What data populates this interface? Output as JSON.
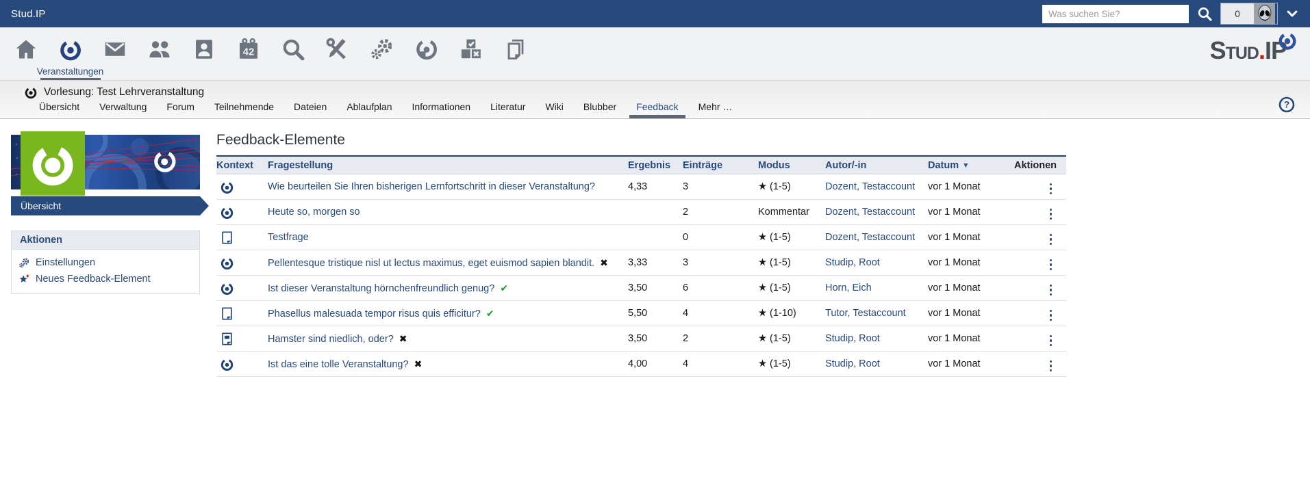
{
  "colors": {
    "brand": "#28497c",
    "table_header_bg": "#e7ebf1",
    "green_square": "#7ab61e",
    "check_green": "#169e1f",
    "cross_black": "#101214",
    "plus_red": "#cc1111",
    "logo_red": "#c3220f"
  },
  "icons_used": [
    "home-icon",
    "seminar-swoosh-icon",
    "mail-icon",
    "community-icon",
    "profile-icon",
    "calendar-icon",
    "search-icon",
    "tools-icon",
    "admin-gears-icon",
    "evaluation-icon",
    "vote-icon",
    "pages-icon",
    "help-icon",
    "chevron-down-icon",
    "alien-avatar",
    "file-icon",
    "file-office-icon",
    "star-plus-icon",
    "sort-desc-icon",
    "kebab-menu-icon"
  ],
  "topbar": {
    "title": "Stud.IP",
    "search_placeholder": "Was suchen Sie?",
    "notification_count": "0"
  },
  "iconbar": {
    "calendar_day": "42",
    "items": [
      {
        "name": "home"
      },
      {
        "name": "seminar",
        "label": "Veranstaltungen",
        "active": true
      },
      {
        "name": "mail"
      },
      {
        "name": "community"
      },
      {
        "name": "profile"
      },
      {
        "name": "calendar"
      },
      {
        "name": "search"
      },
      {
        "name": "tools"
      },
      {
        "name": "admin"
      },
      {
        "name": "evaluation"
      },
      {
        "name": "vote"
      },
      {
        "name": "pages"
      }
    ],
    "logo": {
      "part1": "Stud",
      "dot": ".",
      "part2": "IP"
    }
  },
  "course": {
    "title": "Vorlesung: Test Lehrveranstaltung",
    "tabs": [
      "Übersicht",
      "Verwaltung",
      "Forum",
      "Teilnehmende",
      "Dateien",
      "Ablaufplan",
      "Informationen",
      "Literatur",
      "Wiki",
      "Blubber",
      "Feedback",
      "Mehr …"
    ],
    "active_tab": "Feedback"
  },
  "sidebar": {
    "nav_label": "Übersicht",
    "actions": {
      "title": "Aktionen",
      "items": [
        {
          "icon": "admin",
          "label": "Einstellungen"
        },
        {
          "icon": "star-plus",
          "label": "Neues Feedback-Element"
        }
      ]
    }
  },
  "main": {
    "heading": "Feedback-Elemente",
    "table": {
      "columns": [
        "Kontext",
        "Fragestellung",
        "Ergebnis",
        "Einträge",
        "Modus",
        "Autor/-in",
        "Datum",
        "Aktionen"
      ],
      "sort_column": "Datum",
      "sort_indicator": "▼",
      "rows": [
        {
          "context": "seminar",
          "question": "Wie beurteilen Sie Ihren bisherigen Lernfortschritt in dieser Veranstaltung?",
          "flag": "",
          "flag_type": "none",
          "ergebnis": "4,33",
          "eintraege": "3",
          "modus": "★ (1-5)",
          "autor": "Dozent, Testaccount",
          "datum": "vor 1 Monat"
        },
        {
          "context": "seminar",
          "question": "Heute so, morgen so",
          "flag": "",
          "flag_type": "none",
          "ergebnis": "",
          "eintraege": "2",
          "modus": "Kommentar",
          "autor": "Dozent, Testaccount",
          "datum": "vor 1 Monat"
        },
        {
          "context": "file",
          "question": "Testfrage",
          "flag": "",
          "flag_type": "none",
          "ergebnis": "",
          "eintraege": "0",
          "modus": "★ (1-5)",
          "autor": "Dozent, Testaccount",
          "datum": "vor 1 Monat"
        },
        {
          "context": "seminar",
          "question": "Pellentesque tristique nisl ut lectus maximus, eget euismod sapien blandit.",
          "flag": "✖",
          "flag_type": "cross",
          "ergebnis": "3,33",
          "eintraege": "3",
          "modus": "★ (1-5)",
          "autor": "Studip, Root",
          "datum": "vor 1 Monat"
        },
        {
          "context": "seminar",
          "question": "Ist dieser Veranstaltung hörnchenfreundlich genug?",
          "flag": "✔",
          "flag_type": "check",
          "ergebnis": "3,50",
          "eintraege": "6",
          "modus": "★ (1-5)",
          "autor": "Horn, Eich",
          "datum": "vor 1 Monat"
        },
        {
          "context": "file",
          "question": "Phasellus malesuada tempor risus quis efficitur?",
          "flag": "✔",
          "flag_type": "check",
          "ergebnis": "5,50",
          "eintraege": "4",
          "modus": "★ (1-10)",
          "autor": "Tutor, Testaccount",
          "datum": "vor 1 Monat"
        },
        {
          "context": "file-office",
          "question": "Hamster sind niedlich, oder?",
          "flag": "✖",
          "flag_type": "cross",
          "ergebnis": "3,50",
          "eintraege": "2",
          "modus": "★ (1-5)",
          "autor": "Studip, Root",
          "datum": "vor 1 Monat"
        },
        {
          "context": "seminar",
          "question": "Ist das eine tolle Veranstaltung?",
          "flag": "✖",
          "flag_type": "cross",
          "ergebnis": "4,00",
          "eintraege": "4",
          "modus": "★ (1-5)",
          "autor": "Studip, Root",
          "datum": "vor 1 Monat"
        }
      ]
    }
  }
}
